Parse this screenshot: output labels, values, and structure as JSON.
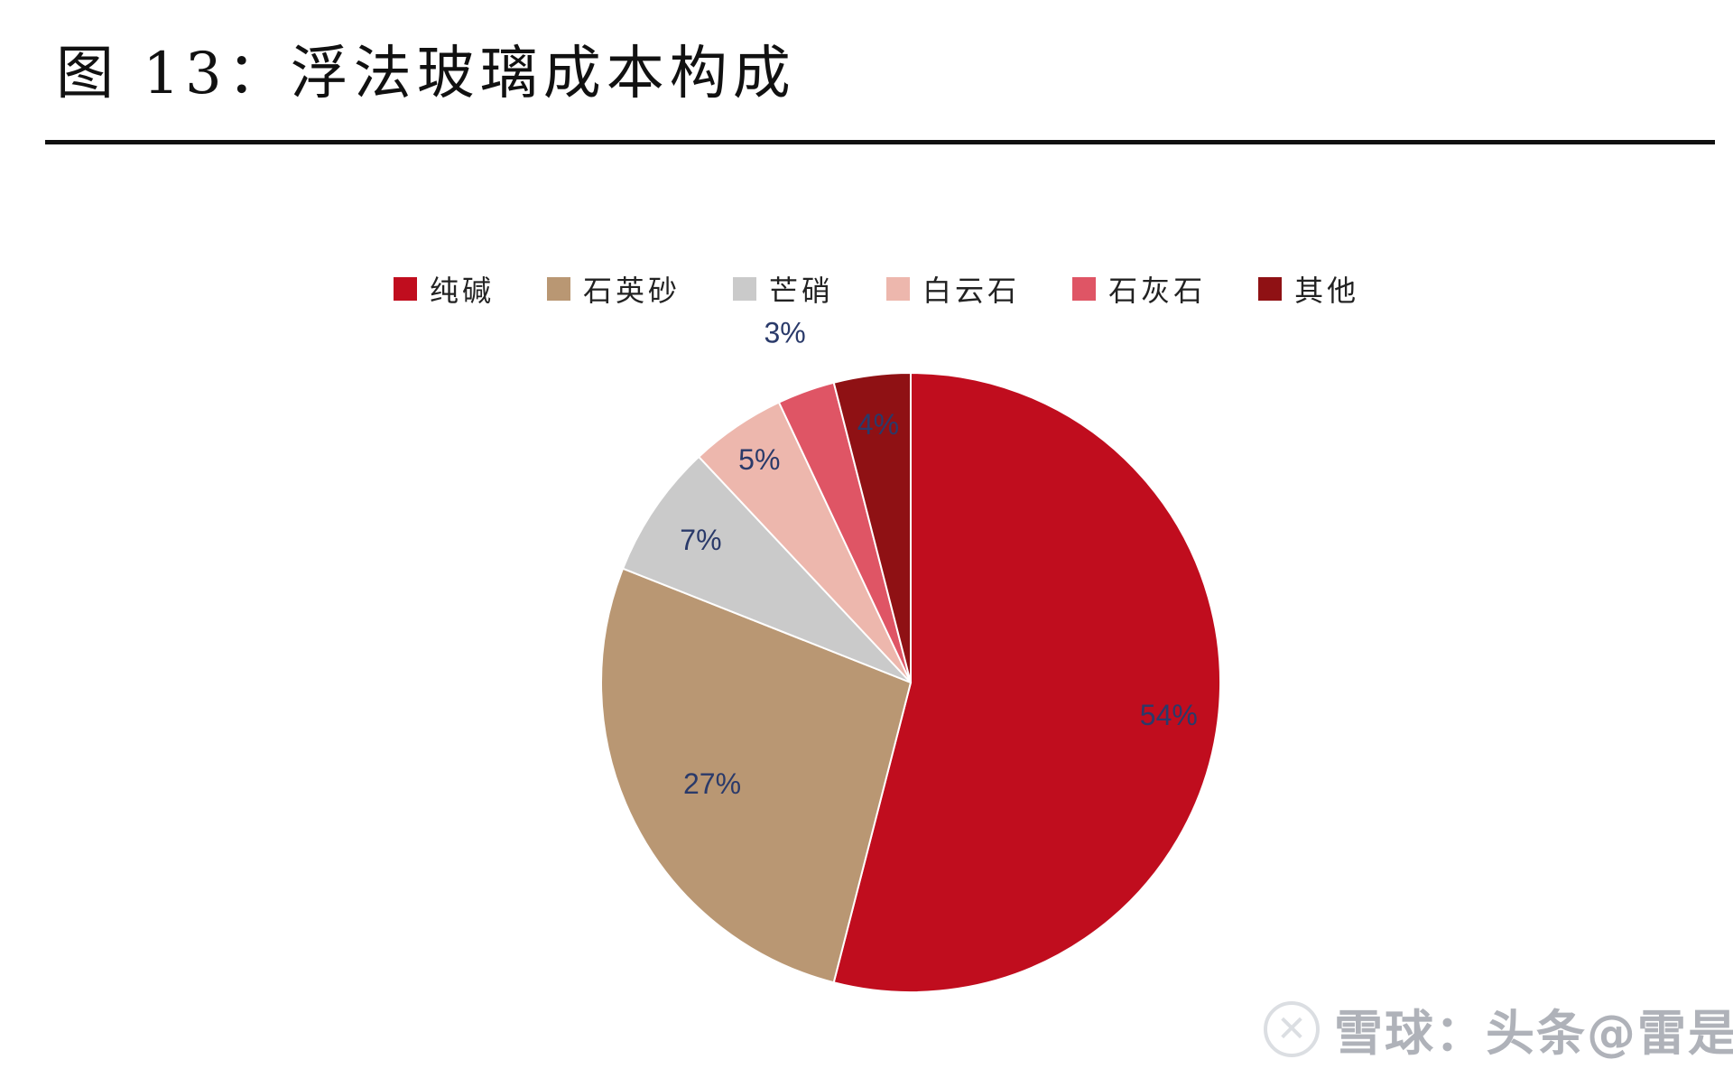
{
  "title": "图 13：浮法玻璃成本构成",
  "chart_data": {
    "type": "pie",
    "title": "图 13：浮法玻璃成本构成",
    "start": "12 o'clock",
    "direction": "clockwise",
    "legend_position": "top",
    "slices": [
      {
        "label": "纯碱",
        "value": 54,
        "value_label": "54%",
        "color": "#C00D1E"
      },
      {
        "label": "石英砂",
        "value": 27,
        "value_label": "27%",
        "color": "#B99773"
      },
      {
        "label": "芒硝",
        "value": 7,
        "value_label": "7%",
        "color": "#CACACA"
      },
      {
        "label": "白云石",
        "value": 5,
        "value_label": "5%",
        "color": "#EDB7AD"
      },
      {
        "label": "石灰石",
        "value": 3,
        "value_label": "3%",
        "color": "#DF5565"
      },
      {
        "label": "其他",
        "value": 4,
        "value_label": "4%",
        "color": "#8F1114"
      }
    ]
  },
  "watermark": {
    "icon": "xueqiu-logo-icon",
    "text": "雪球：头条@雷是"
  }
}
